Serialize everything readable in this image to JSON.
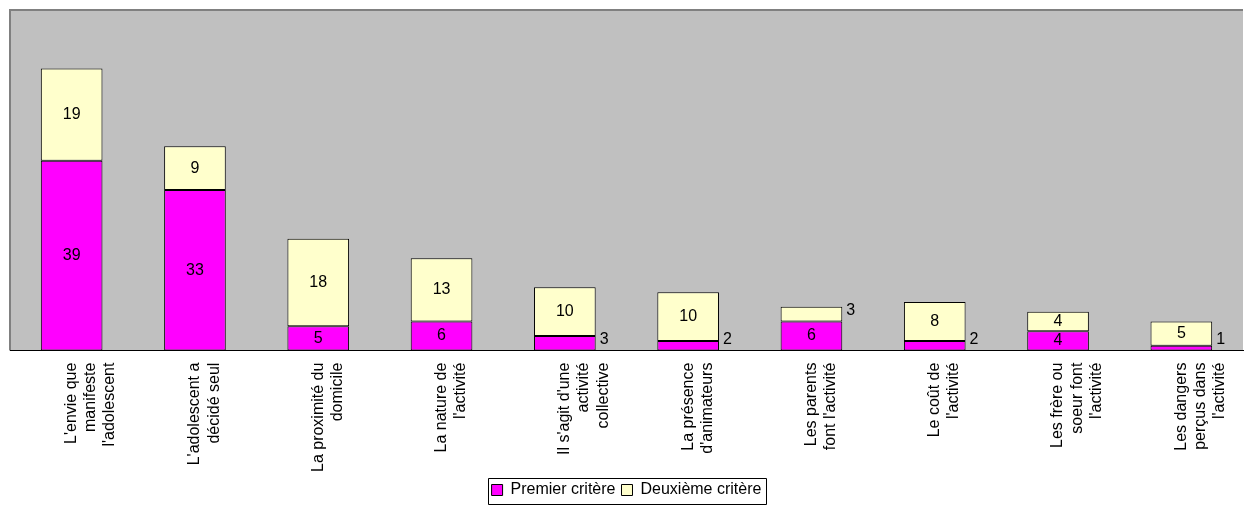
{
  "chart_data": {
    "type": "bar",
    "stacked": true,
    "data_labels": true,
    "legend": "bottom",
    "grid": false,
    "categories": [
      "L'envie que manifeste l'adolescent",
      "L'adolescent a décidé seul",
      "La proximité du domicile",
      "La nature de l'activité",
      "Il s'agit d'une activité collective",
      "La présence d'animateurs",
      "Les parents font l'activité",
      "Le coût de l'activité",
      "Les frère ou soeur font l'activité",
      "Les dangers perçus dans l'activité"
    ],
    "series": [
      {
        "name": "Premier critère",
        "color": "#ff00ff",
        "values": [
          39,
          33,
          5,
          6,
          3,
          2,
          6,
          2,
          4,
          1
        ]
      },
      {
        "name": "Deuxième critère",
        "color": "#ffffcc",
        "values": [
          19,
          9,
          18,
          13,
          10,
          10,
          3,
          8,
          4,
          5
        ]
      }
    ]
  }
}
